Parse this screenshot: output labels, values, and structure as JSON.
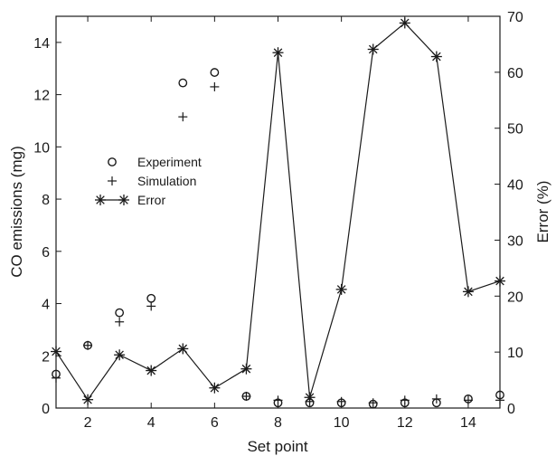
{
  "chart_data": {
    "type": "scatter",
    "xlabel": "Set point",
    "ylabel_left": "CO emissions (mg)",
    "ylabel_right": "Error (%)",
    "xlim": [
      1,
      15
    ],
    "ylim_left": [
      0,
      15
    ],
    "ylim_right": [
      0,
      70
    ],
    "x_ticks": [
      2,
      4,
      6,
      8,
      10,
      12,
      14
    ],
    "y_left_ticks": [
      0,
      2,
      4,
      6,
      8,
      10,
      12,
      14
    ],
    "y_right_ticks": [
      0,
      10,
      20,
      30,
      40,
      50,
      60,
      70
    ],
    "grid": false,
    "legend_position": "middle-left",
    "x": [
      1,
      2,
      3,
      4,
      5,
      6,
      7,
      8,
      9,
      10,
      11,
      12,
      13,
      14,
      15
    ],
    "series": [
      {
        "name": "Experiment",
        "marker": "circle",
        "axis": "left",
        "values": [
          1.3,
          2.4,
          3.65,
          4.2,
          12.45,
          12.85,
          0.45,
          0.2,
          0.2,
          0.2,
          0.15,
          0.2,
          0.2,
          0.35,
          0.5
        ]
      },
      {
        "name": "Simulation",
        "marker": "plus",
        "axis": "left",
        "values": [
          1.15,
          2.4,
          3.3,
          3.9,
          11.15,
          12.3,
          0.45,
          0.3,
          0.25,
          0.25,
          0.2,
          0.3,
          0.35,
          0.3,
          0.3
        ]
      },
      {
        "name": "Error",
        "marker": "asterisk",
        "axis": "right",
        "line": true,
        "values": [
          10.1,
          1.5,
          9.5,
          6.7,
          10.6,
          3.6,
          7.0,
          63.5,
          1.9,
          21.2,
          64.1,
          68.8,
          62.8,
          20.8,
          22.7
        ]
      }
    ]
  }
}
